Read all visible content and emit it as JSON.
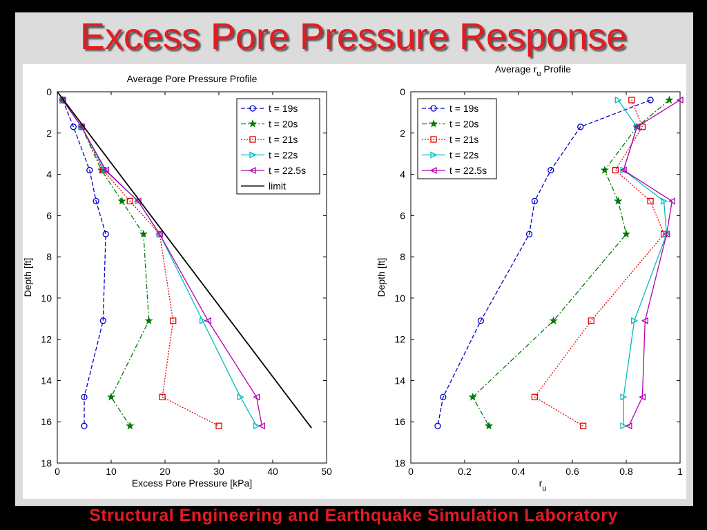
{
  "slide": {
    "title": "Excess Pore Pressure Response",
    "footer": "Structural Engineering and Earthquake Simulation Laboratory"
  },
  "colors": {
    "title_red": "#e31b23",
    "background": "#dcdcdc",
    "t19": "#0000cc",
    "t20": "#007a00",
    "t21": "#e00000",
    "t22": "#00bcbc",
    "t22_5": "#b000b0",
    "limit": "#000000"
  },
  "chart_data": [
    {
      "type": "line",
      "title": "Average Pore Pressure Profile",
      "xlabel": "Excess Pore Pressure [kPa]",
      "ylabel": "Depth [ft]",
      "xlim": [
        0,
        50
      ],
      "ylim": [
        0,
        18
      ],
      "y_inverted": true,
      "xticks": [
        0,
        10,
        20,
        30,
        40,
        50
      ],
      "yticks": [
        0,
        2,
        4,
        6,
        8,
        10,
        12,
        14,
        16,
        18
      ],
      "grid": false,
      "legend_position": "top-right",
      "series": [
        {
          "name": "t = 19s",
          "marker": "circle",
          "dash": "dashed",
          "color": "#0000cc",
          "x": [
            1,
            3,
            6,
            7.2,
            9,
            8.5,
            5,
            5
          ],
          "y": [
            0.4,
            1.7,
            3.8,
            5.3,
            6.9,
            11.1,
            14.8,
            16.2
          ]
        },
        {
          "name": "t = 20s",
          "marker": "star",
          "dash": "dashdot",
          "color": "#007a00",
          "x": [
            1,
            4.5,
            8.2,
            12,
            16,
            17,
            10,
            13.5
          ],
          "y": [
            0.4,
            1.7,
            3.8,
            5.3,
            6.9,
            11.1,
            14.8,
            16.2
          ]
        },
        {
          "name": "t = 21s",
          "marker": "square",
          "dash": "dotted",
          "color": "#e00000",
          "x": [
            1,
            4.5,
            8.5,
            13.5,
            19,
            21.5,
            19.5,
            30
          ],
          "y": [
            0.4,
            1.7,
            3.8,
            5.3,
            6.9,
            11.1,
            14.8,
            16.2
          ]
        },
        {
          "name": "t = 22s",
          "marker": "triangle-right",
          "dash": "solid",
          "color": "#00bcbc",
          "x": [
            1,
            4.5,
            8.8,
            15,
            19,
            27,
            34,
            37
          ],
          "y": [
            0.4,
            1.7,
            3.8,
            5.3,
            6.9,
            11.1,
            14.8,
            16.2
          ]
        },
        {
          "name": "t = 22.5s",
          "marker": "triangle-left",
          "dash": "solid",
          "color": "#b000b0",
          "x": [
            1,
            4.5,
            9,
            15,
            19,
            28,
            37,
            38
          ],
          "y": [
            0.4,
            1.7,
            3.8,
            5.3,
            6.9,
            11.1,
            14.8,
            16.2
          ]
        },
        {
          "name": "limit",
          "marker": "none",
          "dash": "solid",
          "color": "#000000",
          "x": [
            0,
            47.2
          ],
          "y": [
            0,
            16.3
          ]
        }
      ]
    },
    {
      "type": "line",
      "title_main": "Average r",
      "title_sub": "u",
      "title_tail": " Profile",
      "xlabel_main": "r",
      "xlabel_sub": "u",
      "ylabel": "Depth [ft]",
      "xlim": [
        0,
        1
      ],
      "ylim": [
        0,
        18
      ],
      "y_inverted": true,
      "xticks": [
        0,
        0.2,
        0.4,
        0.6,
        0.8,
        1
      ],
      "yticks": [
        0,
        2,
        4,
        6,
        8,
        10,
        12,
        14,
        16,
        18
      ],
      "grid": false,
      "legend_position": "top-left",
      "series": [
        {
          "name": "t = 19s",
          "marker": "circle",
          "dash": "dashed",
          "color": "#0000cc",
          "x": [
            0.89,
            0.63,
            0.52,
            0.46,
            0.44,
            0.26,
            0.12,
            0.1
          ],
          "y": [
            0.4,
            1.7,
            3.8,
            5.3,
            6.9,
            11.1,
            14.8,
            16.2
          ]
        },
        {
          "name": "t = 20s",
          "marker": "star",
          "dash": "dashdot",
          "color": "#007a00",
          "x": [
            0.96,
            0.84,
            0.72,
            0.77,
            0.8,
            0.53,
            0.23,
            0.29
          ],
          "y": [
            0.4,
            1.7,
            3.8,
            5.3,
            6.9,
            11.1,
            14.8,
            16.2
          ]
        },
        {
          "name": "t = 21s",
          "marker": "square",
          "dash": "dotted",
          "color": "#e00000",
          "x": [
            0.82,
            0.86,
            0.76,
            0.89,
            0.94,
            0.67,
            0.46,
            0.64
          ],
          "y": [
            0.4,
            1.7,
            3.8,
            5.3,
            6.9,
            11.1,
            14.8,
            16.2
          ]
        },
        {
          "name": "t = 22s",
          "marker": "triangle-right",
          "dash": "solid",
          "color": "#00bcbc",
          "x": [
            0.77,
            0.84,
            0.79,
            0.94,
            0.95,
            0.83,
            0.79,
            0.79
          ],
          "y": [
            0.4,
            1.7,
            3.8,
            5.3,
            6.9,
            11.1,
            14.8,
            16.2
          ]
        },
        {
          "name": "t = 22.5s",
          "marker": "triangle-left",
          "dash": "solid",
          "color": "#b000b0",
          "x": [
            1.0,
            0.84,
            0.79,
            0.97,
            0.95,
            0.87,
            0.86,
            0.81
          ],
          "y": [
            0.4,
            1.7,
            3.8,
            5.3,
            6.9,
            11.1,
            14.8,
            16.2
          ]
        }
      ]
    }
  ]
}
